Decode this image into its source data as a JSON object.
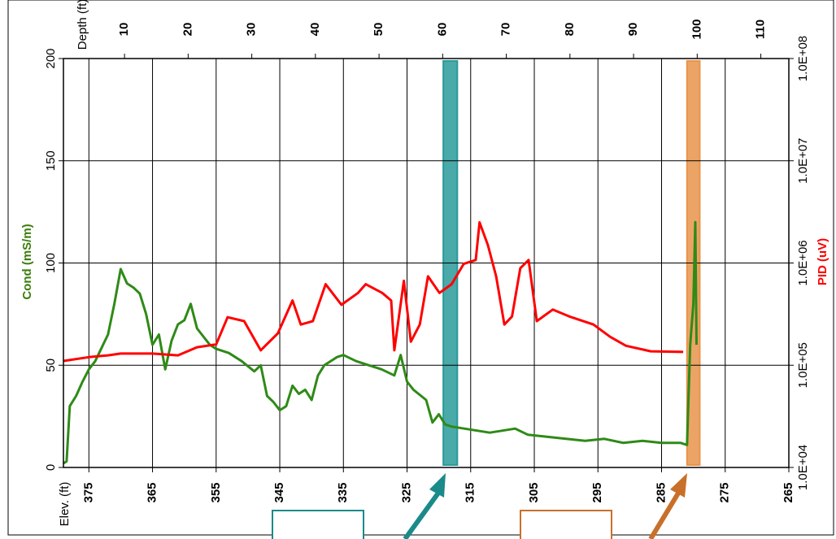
{
  "chart_data": {
    "type": "line",
    "x_label": "Elev. (ft)",
    "x2_label": "Depth (ft)",
    "y_label": "Cond (mS/m)",
    "y2_label": "PID (uV)",
    "xlim": [
      379,
      265
    ],
    "xticks": [
      375,
      365,
      355,
      345,
      335,
      325,
      315,
      305,
      295,
      285,
      275,
      265
    ],
    "x2lim": [
      0.4,
      114.4
    ],
    "x2ticks": [
      10,
      20,
      30,
      40,
      50,
      60,
      70,
      80,
      90,
      100,
      110
    ],
    "ylim": [
      0,
      200
    ],
    "yticks": [
      0,
      50,
      100,
      150,
      200
    ],
    "y2lim": [
      10000,
      100000000
    ],
    "y2log": true,
    "y2ticks": [
      {
        "value": 10000,
        "label": "1.0E+04"
      },
      {
        "value": 100000,
        "label": "1.0E+05"
      },
      {
        "value": 1000000,
        "label": "1.0E+06"
      },
      {
        "value": 10000000,
        "label": "1.0E+07"
      },
      {
        "value": 100000000,
        "label": "1.0E+08"
      }
    ],
    "grid": true,
    "series": [
      {
        "name": "Cond",
        "color": "#2f8a17",
        "axis": "y",
        "x": [
          379,
          378.5,
          378,
          377,
          376,
          375,
          374,
          372,
          371,
          370,
          369,
          368,
          367,
          366,
          365,
          364,
          363,
          362,
          361,
          360,
          359,
          358,
          357,
          356,
          355,
          353,
          351,
          349,
          348,
          347,
          346,
          345,
          344,
          343,
          342,
          341,
          340,
          339,
          338,
          337,
          336,
          335,
          333,
          331,
          329,
          327,
          326,
          325,
          324,
          322,
          321,
          320,
          319,
          318,
          316,
          314,
          312,
          310,
          308,
          306,
          303,
          300,
          297,
          294,
          291,
          288,
          285,
          282,
          281,
          280.5,
          280,
          279.7,
          279.5
        ],
        "values": [
          2,
          3,
          30,
          35,
          42,
          48,
          52,
          65,
          80,
          97,
          90,
          88,
          85,
          75,
          60,
          65,
          48,
          62,
          70,
          72,
          80,
          68,
          64,
          60,
          58,
          56,
          52,
          47,
          50,
          35,
          32,
          28,
          30,
          40,
          36,
          38,
          33,
          45,
          50,
          52,
          54,
          55,
          52,
          50,
          48,
          45,
          55,
          42,
          38,
          33,
          22,
          26,
          21,
          20,
          19,
          18,
          17,
          18,
          19,
          16,
          15,
          14,
          13,
          14,
          12,
          13,
          12,
          12,
          11,
          60,
          80,
          120,
          60
        ]
      },
      {
        "name": "PID",
        "color": "#ff0000",
        "axis": "y2",
        "x": [
          379,
          375,
          372,
          370,
          365,
          361,
          358,
          355,
          353.2,
          350.6,
          348,
          345.3,
          343,
          341.7,
          339.8,
          337.8,
          335.3,
          332.7,
          331.5,
          328.9,
          327.5,
          327,
          325.5,
          324.4,
          323,
          321.7,
          319.9,
          318,
          316.1,
          314.2,
          313.6,
          312.3,
          311,
          309.7,
          308.5,
          307.2,
          305.9,
          304.6,
          302.1,
          299.5,
          295.7,
          293.1,
          290.6,
          286.7,
          281.6
        ],
        "values": [
          110000,
          120000,
          125000,
          130000,
          130000,
          125000,
          150000,
          160000,
          295000,
          270000,
          140000,
          205000,
          430000,
          250000,
          270000,
          620000,
          390000,
          510000,
          620000,
          510000,
          430000,
          140000,
          670000,
          170000,
          250000,
          740000,
          510000,
          620000,
          980000,
          1070000,
          2500000,
          1500000,
          740000,
          250000,
          300000,
          890000,
          1070000,
          270000,
          350000,
          300000,
          250000,
          190000,
          155000,
          137000,
          135000
        ]
      }
    ],
    "bands": [
      {
        "from": 319.3,
        "to": 317.1,
        "color": "#2a9a9a"
      },
      {
        "from": 281.0,
        "to": 279.0,
        "color": "#e8944a"
      }
    ]
  }
}
